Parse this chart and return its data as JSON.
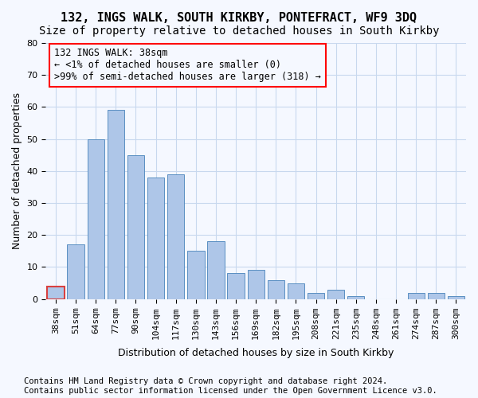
{
  "title1": "132, INGS WALK, SOUTH KIRKBY, PONTEFRACT, WF9 3DQ",
  "title2": "Size of property relative to detached houses in South Kirkby",
  "xlabel": "Distribution of detached houses by size in South Kirkby",
  "ylabel": "Number of detached properties",
  "categories": [
    "38sqm",
    "51sqm",
    "64sqm",
    "77sqm",
    "90sqm",
    "104sqm",
    "117sqm",
    "130sqm",
    "143sqm",
    "156sqm",
    "169sqm",
    "182sqm",
    "195sqm",
    "208sqm",
    "221sqm",
    "235sqm",
    "248sqm",
    "261sqm",
    "274sqm",
    "287sqm",
    "300sqm"
  ],
  "values": [
    4,
    17,
    50,
    59,
    45,
    38,
    39,
    15,
    18,
    8,
    9,
    6,
    5,
    2,
    3,
    1,
    0,
    0,
    2,
    2,
    1
  ],
  "bar_color": "#aec6e8",
  "bar_edge_color": "#5a8fc2",
  "highlight_bar_index": 0,
  "highlight_bar_color": "#d94040",
  "ylim": [
    0,
    80
  ],
  "yticks": [
    0,
    10,
    20,
    30,
    40,
    50,
    60,
    70,
    80
  ],
  "annotation_box_text": "132 INGS WALK: 38sqm\n← <1% of detached houses are smaller (0)\n>99% of semi-detached houses are larger (318) →",
  "footer1": "Contains HM Land Registry data © Crown copyright and database right 2024.",
  "footer2": "Contains public sector information licensed under the Open Government Licence v3.0.",
  "bg_color": "#f5f8ff",
  "grid_color": "#c8d8ee",
  "title_fontsize": 11,
  "subtitle_fontsize": 10,
  "axis_label_fontsize": 9,
  "tick_fontsize": 8,
  "annotation_fontsize": 8.5,
  "footer_fontsize": 7.5
}
